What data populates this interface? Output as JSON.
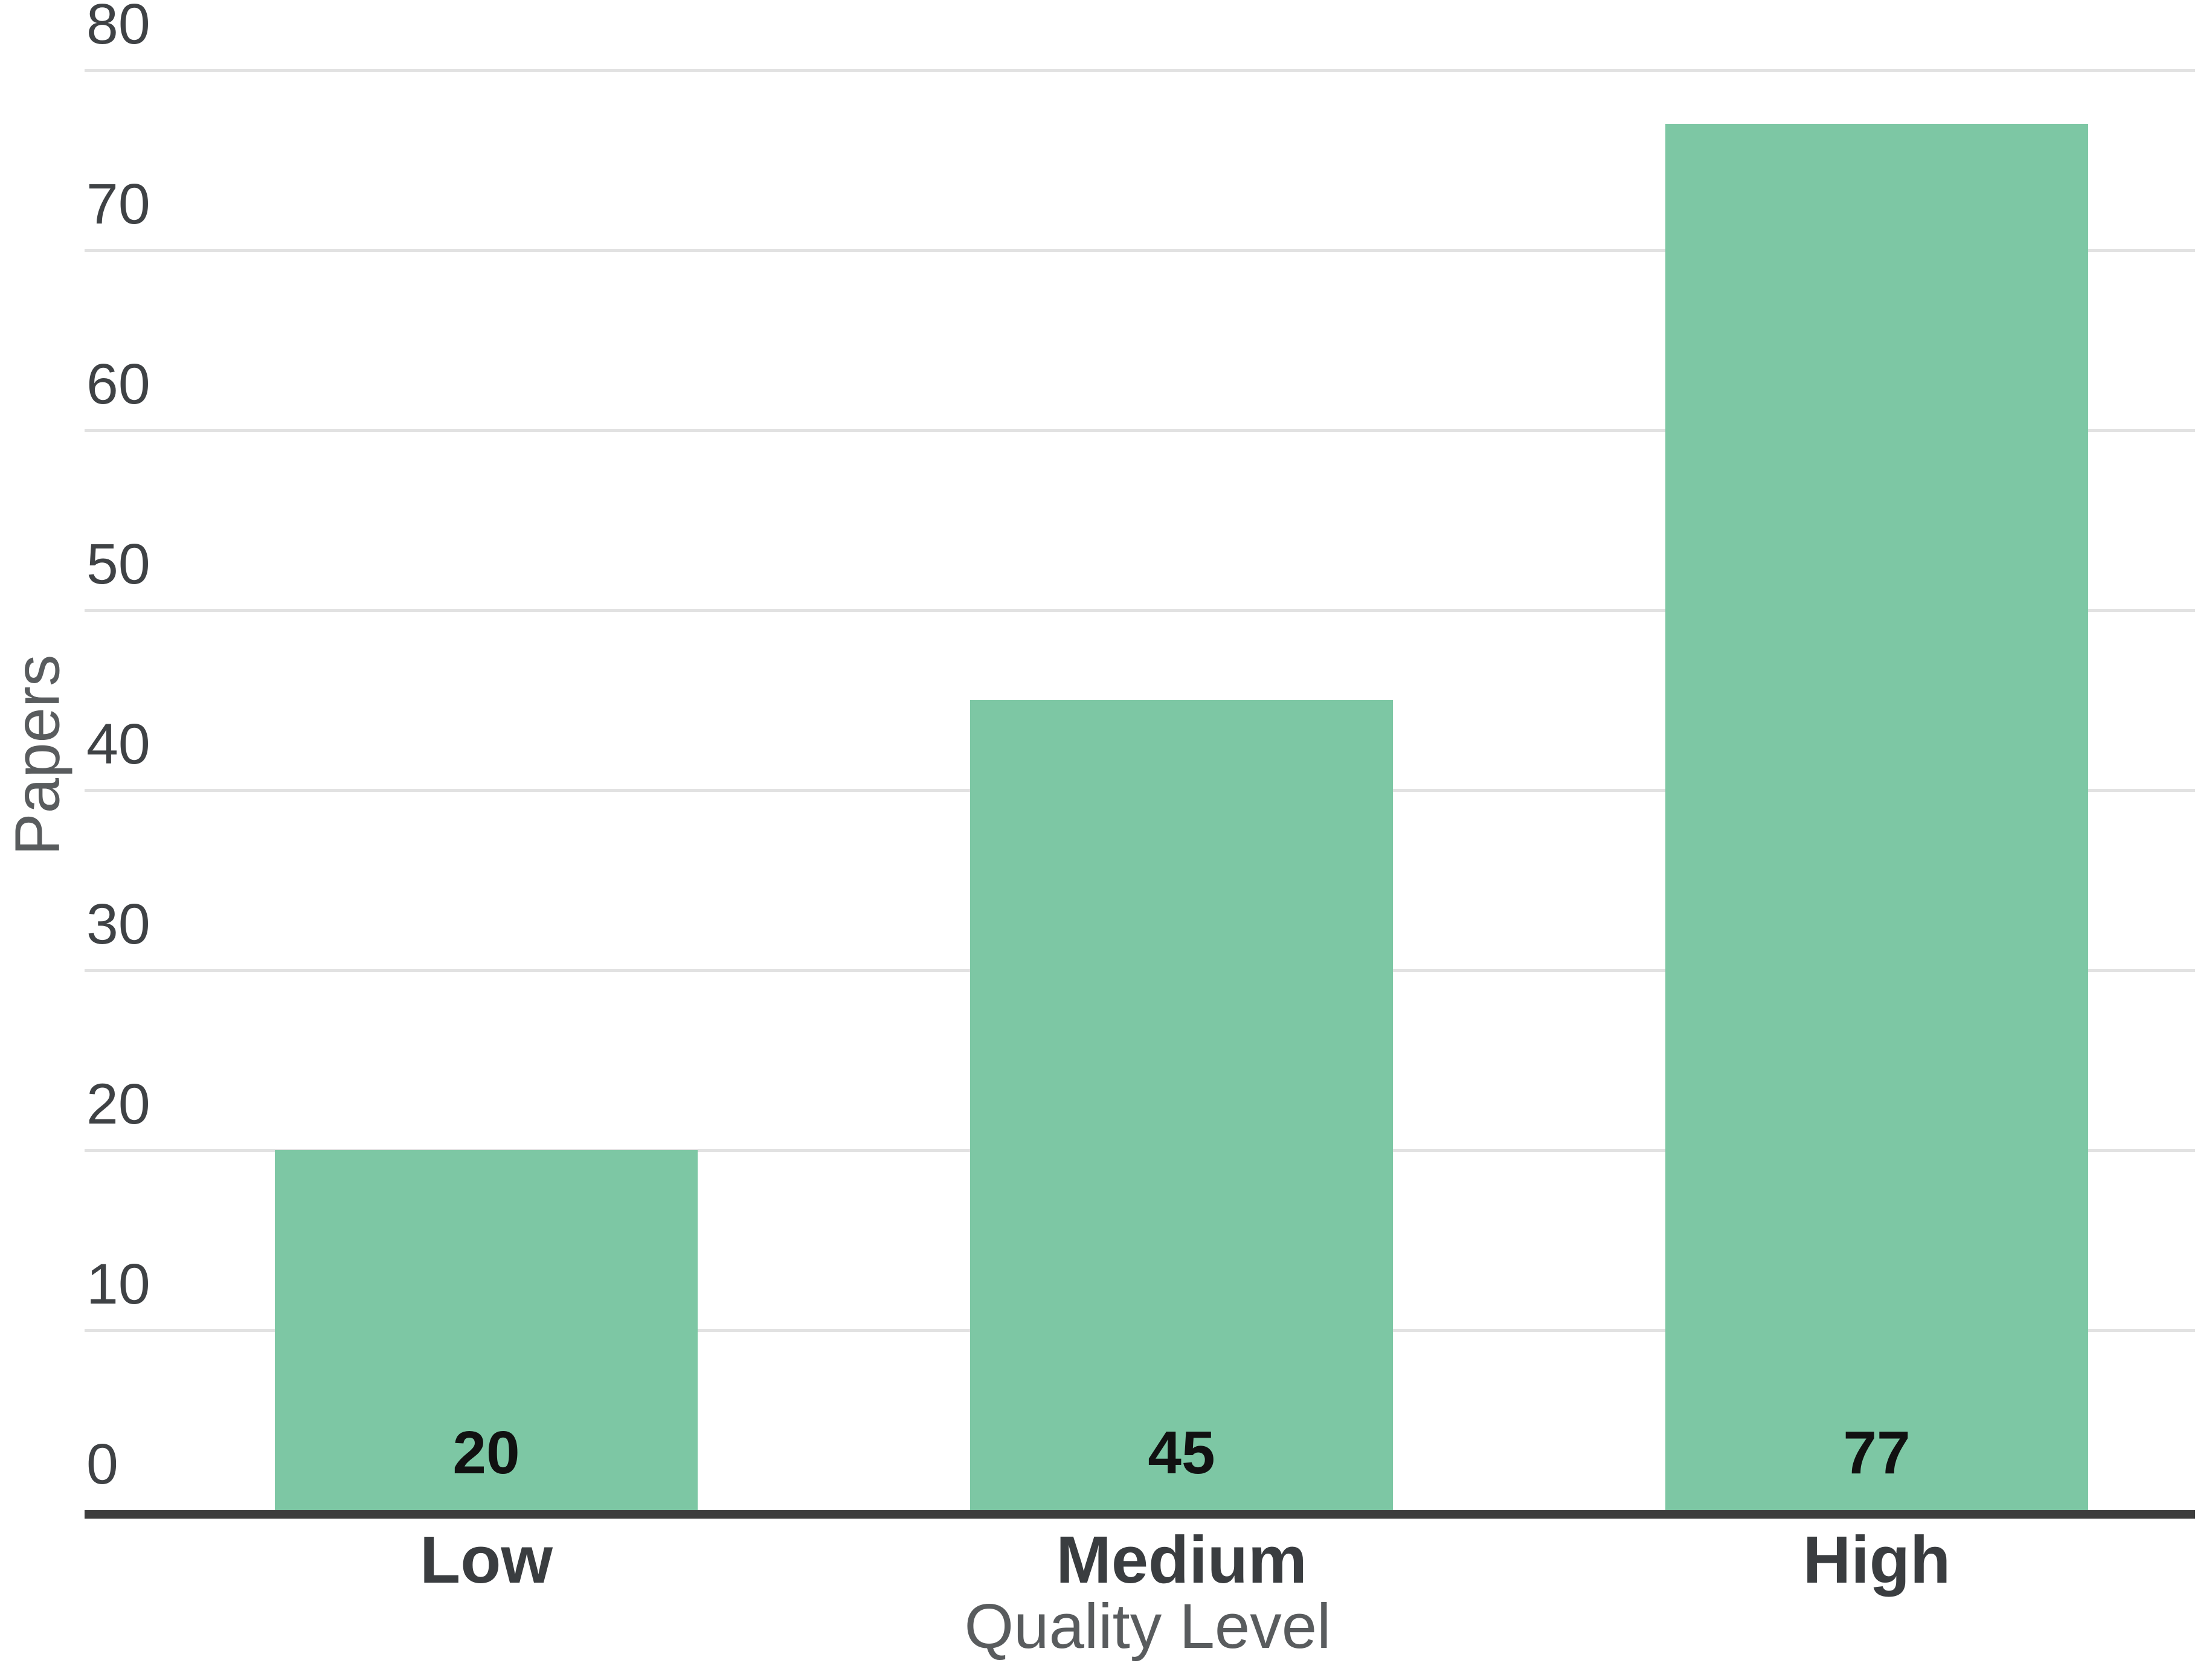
{
  "chart_data": {
    "type": "bar",
    "title": "",
    "categories": [
      "Low",
      "Medium",
      "High"
    ],
    "values": [
      20,
      45,
      77
    ],
    "value_labels": [
      "20",
      "45",
      "77"
    ],
    "xlabel": "Quality Level",
    "ylabel": "Papers",
    "ylim": [
      0,
      80
    ],
    "ytick_step": 10,
    "ytick_labels": [
      "0",
      "10",
      "20",
      "30",
      "40",
      "50",
      "60",
      "70",
      "80"
    ],
    "grid": "horizontal",
    "legend_position": "none",
    "colors": {
      "bar": "#7dc7a4",
      "gridline": "#e2e2e2",
      "axis_line": "#3d3d3d",
      "tick_text": "#3f4245",
      "category_text": "#3a3d40",
      "value_text": "#111111",
      "axis_title_text": "#595c5e",
      "background": "#ffffff"
    }
  }
}
